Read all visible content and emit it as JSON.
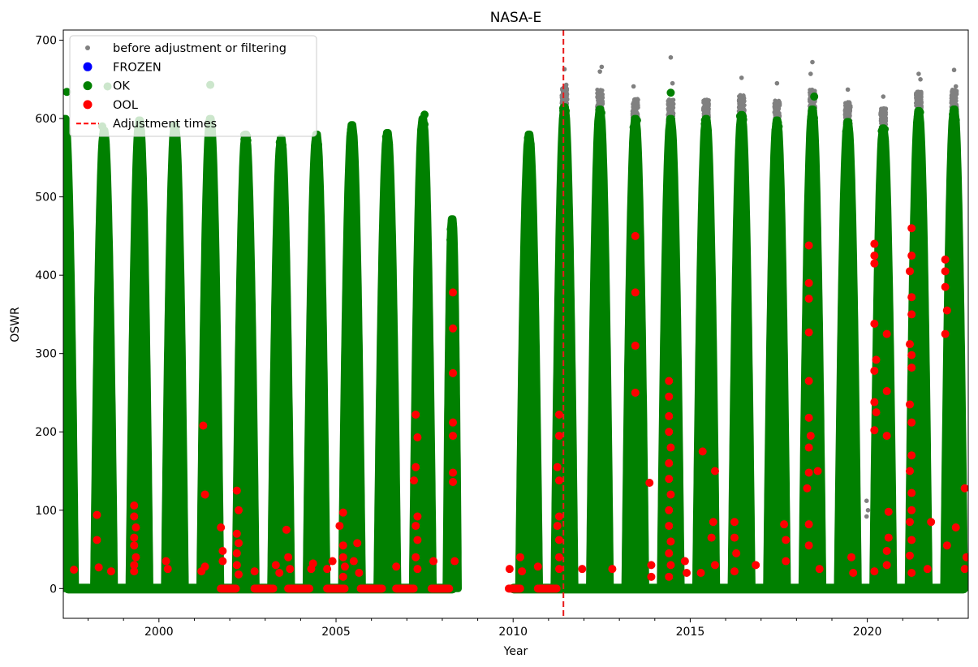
{
  "chart_data": {
    "type": "scatter",
    "title": "NASA-E",
    "xlabel": "Year",
    "ylabel": "OSWR",
    "xlim": [
      1997.3,
      2022.85
    ],
    "ylim": [
      -38,
      713
    ],
    "xticks": [
      2000,
      2005,
      2010,
      2015,
      2020
    ],
    "yticks": [
      0,
      100,
      200,
      300,
      400,
      500,
      600,
      700
    ],
    "x_minor_step": 1,
    "grid": false,
    "legend_position": "top-left",
    "legend": [
      {
        "label": "before adjustment or filtering",
        "color": "#808080",
        "marker": "small-dot"
      },
      {
        "label": "FROZEN",
        "color": "#0000ff",
        "marker": "dot"
      },
      {
        "label": "OK",
        "color": "#008000",
        "marker": "dot"
      },
      {
        "label": "OOL",
        "color": "#ff0000",
        "marker": "dot"
      },
      {
        "label": "Adjustment times",
        "color": "#ff0000",
        "marker": "dashed-line"
      }
    ],
    "adjustment_times": [
      2011.42
    ],
    "series": [
      {
        "name": "OK",
        "color": "#008000",
        "summer_peaks": [
          {
            "year": 1997.35,
            "peak": 600
          },
          {
            "year": 1998.45,
            "peak": 585
          },
          {
            "year": 1999.45,
            "peak": 598
          },
          {
            "year": 2000.45,
            "peak": 592
          },
          {
            "year": 2001.45,
            "peak": 600
          },
          {
            "year": 2002.45,
            "peak": 580
          },
          {
            "year": 2003.45,
            "peak": 575
          },
          {
            "year": 2004.45,
            "peak": 580
          },
          {
            "year": 2005.45,
            "peak": 592
          },
          {
            "year": 2006.45,
            "peak": 582
          },
          {
            "year": 2007.45,
            "peak": 600
          },
          {
            "year": 2008.28,
            "peak": 472
          },
          {
            "year": 2010.45,
            "peak": 580
          },
          {
            "year": 2011.45,
            "peak": 615
          },
          {
            "year": 2012.45,
            "peak": 612
          },
          {
            "year": 2013.45,
            "peak": 600
          },
          {
            "year": 2014.45,
            "peak": 600
          },
          {
            "year": 2015.45,
            "peak": 600
          },
          {
            "year": 2016.45,
            "peak": 605
          },
          {
            "year": 2017.45,
            "peak": 598
          },
          {
            "year": 2018.45,
            "peak": 612
          },
          {
            "year": 2019.45,
            "peak": 596
          },
          {
            "year": 2020.45,
            "peak": 588
          },
          {
            "year": 2021.45,
            "peak": 610
          },
          {
            "year": 2022.45,
            "peak": 612
          }
        ],
        "outliers": [
          [
            1997.4,
            634
          ],
          [
            1998.55,
            641
          ],
          [
            1998.4,
            590
          ],
          [
            2001.45,
            643
          ],
          [
            2007.5,
            605
          ],
          [
            2014.45,
            633
          ],
          [
            2018.5,
            628
          ],
          [
            2022.5,
            598
          ]
        ]
      },
      {
        "name": "before adjustment or filtering",
        "color": "#808080",
        "points": [
          [
            2011.45,
            663
          ],
          [
            2011.5,
            643
          ],
          [
            2012.5,
            666
          ],
          [
            2012.45,
            660
          ],
          [
            2013.4,
            641
          ],
          [
            2014.45,
            678
          ],
          [
            2014.5,
            645
          ],
          [
            2016.45,
            652
          ],
          [
            2017.45,
            645
          ],
          [
            2018.4,
            657
          ],
          [
            2018.45,
            672
          ],
          [
            2019.45,
            637
          ],
          [
            2020.45,
            628
          ],
          [
            2021.45,
            657
          ],
          [
            2021.5,
            650
          ],
          [
            2022.45,
            662
          ],
          [
            2022.5,
            641
          ],
          [
            2019.98,
            112
          ],
          [
            2020.02,
            100
          ],
          [
            2019.98,
            92
          ],
          [
            2013.4,
            320
          ],
          [
            2013.45,
            310
          ]
        ]
      },
      {
        "name": "OOL",
        "color": "#ff0000",
        "points": [
          [
            1997.6,
            24
          ],
          [
            1998.25,
            94
          ],
          [
            1998.25,
            62
          ],
          [
            1998.3,
            27
          ],
          [
            1998.65,
            22
          ],
          [
            1999.3,
            106
          ],
          [
            1999.3,
            92
          ],
          [
            1999.35,
            78
          ],
          [
            1999.3,
            65
          ],
          [
            1999.3,
            55
          ],
          [
            1999.35,
            40
          ],
          [
            1999.3,
            30
          ],
          [
            1999.3,
            22
          ],
          [
            2000.2,
            35
          ],
          [
            2000.25,
            25
          ],
          [
            2001.2,
            22
          ],
          [
            2001.3,
            28
          ],
          [
            2001.25,
            208
          ],
          [
            2001.3,
            120
          ],
          [
            2001.75,
            78
          ],
          [
            2001.8,
            48
          ],
          [
            2001.8,
            35
          ],
          [
            2002.2,
            125
          ],
          [
            2002.25,
            100
          ],
          [
            2002.2,
            70
          ],
          [
            2002.25,
            58
          ],
          [
            2002.2,
            45
          ],
          [
            2002.2,
            30
          ],
          [
            2002.25,
            18
          ],
          [
            2002.7,
            22
          ],
          [
            2003.3,
            30
          ],
          [
            2003.4,
            20
          ],
          [
            2003.6,
            75
          ],
          [
            2003.65,
            40
          ],
          [
            2003.7,
            25
          ],
          [
            2004.3,
            25
          ],
          [
            2004.35,
            32
          ],
          [
            2004.75,
            25
          ],
          [
            2004.9,
            35
          ],
          [
            2005.1,
            80
          ],
          [
            2005.2,
            97
          ],
          [
            2005.2,
            55
          ],
          [
            2005.2,
            40
          ],
          [
            2005.25,
            28
          ],
          [
            2005.2,
            15
          ],
          [
            2005.5,
            35
          ],
          [
            2005.6,
            58
          ],
          [
            2005.65,
            20
          ],
          [
            2006.7,
            28
          ],
          [
            2007.25,
            222
          ],
          [
            2007.3,
            193
          ],
          [
            2007.25,
            155
          ],
          [
            2007.2,
            138
          ],
          [
            2007.3,
            92
          ],
          [
            2007.25,
            80
          ],
          [
            2007.3,
            62
          ],
          [
            2007.25,
            40
          ],
          [
            2007.3,
            25
          ],
          [
            2007.75,
            35
          ],
          [
            2008.3,
            378
          ],
          [
            2008.3,
            332
          ],
          [
            2008.3,
            275
          ],
          [
            2008.3,
            212
          ],
          [
            2008.3,
            195
          ],
          [
            2008.3,
            148
          ],
          [
            2008.3,
            136
          ],
          [
            2008.35,
            35
          ],
          [
            2009.9,
            25
          ],
          [
            2010.2,
            40
          ],
          [
            2010.25,
            22
          ],
          [
            2010.7,
            28
          ],
          [
            2011.3,
            222
          ],
          [
            2011.3,
            195
          ],
          [
            2011.25,
            155
          ],
          [
            2011.3,
            138
          ],
          [
            2011.3,
            92
          ],
          [
            2011.25,
            80
          ],
          [
            2011.3,
            62
          ],
          [
            2011.3,
            40
          ],
          [
            2011.3,
            25
          ],
          [
            2011.95,
            25
          ],
          [
            2012.8,
            25
          ],
          [
            2013.45,
            450
          ],
          [
            2013.45,
            378
          ],
          [
            2013.45,
            310
          ],
          [
            2013.45,
            250
          ],
          [
            2013.85,
            135
          ],
          [
            2013.9,
            30
          ],
          [
            2013.9,
            15
          ],
          [
            2014.4,
            265
          ],
          [
            2014.4,
            245
          ],
          [
            2014.4,
            220
          ],
          [
            2014.4,
            200
          ],
          [
            2014.45,
            180
          ],
          [
            2014.4,
            160
          ],
          [
            2014.4,
            140
          ],
          [
            2014.45,
            120
          ],
          [
            2014.4,
            100
          ],
          [
            2014.4,
            80
          ],
          [
            2014.45,
            60
          ],
          [
            2014.4,
            45
          ],
          [
            2014.45,
            30
          ],
          [
            2014.4,
            15
          ],
          [
            2014.85,
            35
          ],
          [
            2014.9,
            20
          ],
          [
            2015.3,
            20
          ],
          [
            2015.35,
            175
          ],
          [
            2015.7,
            150
          ],
          [
            2015.65,
            85
          ],
          [
            2015.6,
            65
          ],
          [
            2015.7,
            30
          ],
          [
            2016.25,
            85
          ],
          [
            2016.25,
            65
          ],
          [
            2016.3,
            45
          ],
          [
            2016.25,
            22
          ],
          [
            2016.85,
            30
          ],
          [
            2017.65,
            82
          ],
          [
            2017.7,
            62
          ],
          [
            2017.7,
            35
          ],
          [
            2018.35,
            438
          ],
          [
            2018.35,
            390
          ],
          [
            2018.35,
            370
          ],
          [
            2018.35,
            327
          ],
          [
            2018.35,
            265
          ],
          [
            2018.35,
            218
          ],
          [
            2018.4,
            195
          ],
          [
            2018.35,
            180
          ],
          [
            2018.35,
            148
          ],
          [
            2018.3,
            128
          ],
          [
            2018.35,
            82
          ],
          [
            2018.35,
            55
          ],
          [
            2018.6,
            150
          ],
          [
            2018.65,
            25
          ],
          [
            2019.55,
            40
          ],
          [
            2019.6,
            20
          ],
          [
            2020.2,
            440
          ],
          [
            2020.2,
            425
          ],
          [
            2020.2,
            415
          ],
          [
            2020.2,
            338
          ],
          [
            2020.25,
            292
          ],
          [
            2020.2,
            278
          ],
          [
            2020.2,
            238
          ],
          [
            2020.25,
            225
          ],
          [
            2020.2,
            202
          ],
          [
            2020.2,
            22
          ],
          [
            2020.55,
            325
          ],
          [
            2020.55,
            252
          ],
          [
            2020.55,
            195
          ],
          [
            2020.6,
            98
          ],
          [
            2020.6,
            65
          ],
          [
            2020.55,
            48
          ],
          [
            2020.55,
            30
          ],
          [
            2021.25,
            460
          ],
          [
            2021.25,
            425
          ],
          [
            2021.2,
            405
          ],
          [
            2021.25,
            372
          ],
          [
            2021.25,
            350
          ],
          [
            2021.2,
            312
          ],
          [
            2021.25,
            298
          ],
          [
            2021.25,
            282
          ],
          [
            2021.2,
            235
          ],
          [
            2021.25,
            212
          ],
          [
            2021.25,
            170
          ],
          [
            2021.2,
            150
          ],
          [
            2021.25,
            122
          ],
          [
            2021.25,
            100
          ],
          [
            2021.2,
            85
          ],
          [
            2021.25,
            62
          ],
          [
            2021.2,
            42
          ],
          [
            2021.25,
            20
          ],
          [
            2021.7,
            25
          ],
          [
            2021.8,
            85
          ],
          [
            2022.2,
            420
          ],
          [
            2022.2,
            405
          ],
          [
            2022.2,
            385
          ],
          [
            2022.25,
            355
          ],
          [
            2022.2,
            325
          ],
          [
            2022.25,
            55
          ],
          [
            2022.5,
            78
          ],
          [
            2022.75,
            128
          ],
          [
            2022.8,
            40
          ],
          [
            2022.75,
            25
          ]
        ]
      }
    ]
  }
}
